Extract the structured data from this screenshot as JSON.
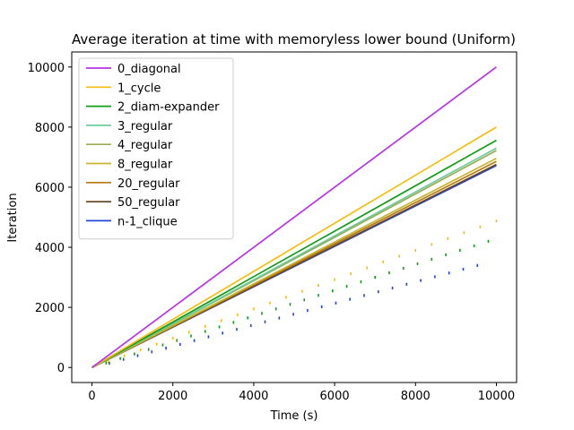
{
  "chart_data": {
    "type": "line",
    "title": "Average iteration at time with memoryless lower bound",
    "title_right": "(Uniform)",
    "xlabel": "Time (s)",
    "ylabel": "Iteration",
    "xlim": [
      -500,
      10500
    ],
    "ylim": [
      -500,
      10500
    ],
    "xticks": [
      0,
      2000,
      4000,
      6000,
      8000,
      10000
    ],
    "yticks": [
      0,
      2000,
      4000,
      6000,
      8000,
      10000
    ],
    "x": [
      0,
      10000
    ],
    "series": [
      {
        "name": "0_diagonal",
        "color": "#b833e8",
        "values": [
          0,
          10000
        ]
      },
      {
        "name": "1_cycle",
        "color": "#f5be0e",
        "values": [
          0,
          8000
        ]
      },
      {
        "name": "2_diam-expander",
        "color": "#119b16",
        "values": [
          0,
          7560
        ]
      },
      {
        "name": "3_regular",
        "color": "#6ecc9a",
        "values": [
          0,
          7300
        ]
      },
      {
        "name": "4_regular",
        "color": "#9aaa55",
        "values": [
          0,
          7220
        ]
      },
      {
        "name": "8_regular",
        "color": "#c8b42e",
        "values": [
          0,
          6960
        ]
      },
      {
        "name": "20_regular",
        "color": "#b37a10",
        "values": [
          0,
          6860
        ]
      },
      {
        "name": "50_regular",
        "color": "#6a4a2a",
        "values": [
          0,
          6760
        ]
      },
      {
        "name": "n-1_clique",
        "color": "#1f45d6",
        "values": [
          0,
          6720
        ]
      }
    ],
    "lower_bound_series": [
      {
        "color": "#f5be0e",
        "x": [
          400,
          800,
          1200,
          1600,
          2000,
          2400,
          2800,
          3200,
          3600,
          4000,
          4400,
          4800,
          5200,
          5600,
          6000,
          6400,
          6800,
          7200,
          7600,
          8000,
          8400,
          8800,
          9200,
          9600,
          10000
        ],
        "values": [
          195,
          390,
          585,
          780,
          975,
          1170,
          1365,
          1560,
          1755,
          1950,
          2145,
          2340,
          2535,
          2730,
          2925,
          3120,
          3315,
          3510,
          3705,
          3900,
          4095,
          4290,
          4485,
          4680,
          4875
        ]
      },
      {
        "color": "#119b16",
        "x": [
          350,
          700,
          1050,
          1400,
          1750,
          2100,
          2450,
          2800,
          3150,
          3500,
          3850,
          4200,
          4550,
          4900,
          5250,
          5600,
          5950,
          6300,
          6650,
          7000,
          7350,
          7700,
          8050,
          8400,
          8750,
          9100,
          9450,
          9800
        ],
        "values": [
          150,
          300,
          450,
          600,
          750,
          900,
          1050,
          1200,
          1350,
          1500,
          1650,
          1800,
          1950,
          2100,
          2250,
          2400,
          2550,
          2700,
          2850,
          3000,
          3150,
          3300,
          3450,
          3600,
          3750,
          3900,
          4050,
          4200
        ]
      },
      {
        "color": "#1f45d6",
        "x": [
          430,
          780,
          1130,
          1480,
          1830,
          2180,
          2530,
          2880,
          3230,
          3580,
          3930,
          4280,
          4630,
          4980,
          5330,
          5680,
          6030,
          6380,
          6730,
          7080,
          7430,
          7780,
          8130,
          8480,
          8830,
          9180,
          9530
        ],
        "values": [
          145,
          270,
          395,
          520,
          645,
          770,
          895,
          1020,
          1145,
          1270,
          1395,
          1520,
          1645,
          1770,
          1895,
          2020,
          2145,
          2270,
          2395,
          2520,
          2645,
          2770,
          2895,
          3020,
          3145,
          3270,
          3395
        ]
      }
    ],
    "legend": "upper-left",
    "grid": false
  }
}
